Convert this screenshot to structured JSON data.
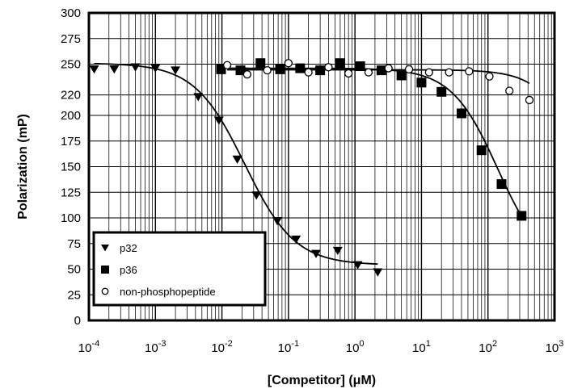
{
  "chart_data": {
    "type": "scatter",
    "xlabel": "[Competitor] (μM)",
    "ylabel": "Polarization (mP)",
    "xscale": "log",
    "xlim": [
      0.0001,
      1000
    ],
    "ylim": [
      0,
      300
    ],
    "x_ticks": [
      {
        "base": "10",
        "exp": "-4",
        "value": 0.0001
      },
      {
        "base": "10",
        "exp": "-3",
        "value": 0.001
      },
      {
        "base": "10",
        "exp": "-2",
        "value": 0.01
      },
      {
        "base": "10",
        "exp": "-1",
        "value": 0.1
      },
      {
        "base": "10",
        "exp": "0",
        "value": 1
      },
      {
        "base": "10",
        "exp": "1",
        "value": 10
      },
      {
        "base": "10",
        "exp": "2",
        "value": 100
      },
      {
        "base": "10",
        "exp": "3",
        "value": 1000
      }
    ],
    "y_ticks": [
      0,
      25,
      50,
      75,
      100,
      125,
      150,
      175,
      200,
      220,
      250,
      275,
      300
    ],
    "y_tick_labels": [
      "0",
      "25",
      "50",
      "75",
      "100",
      "125",
      "150",
      "175",
      "200",
      "220",
      "250",
      "275",
      "300"
    ],
    "grid": true,
    "legend_position": "bottom-left",
    "series": [
      {
        "name": "p32",
        "marker": "triangle-down",
        "x": [
          0.00012,
          0.00024,
          0.0005,
          0.001,
          0.002,
          0.0044,
          0.009,
          0.017,
          0.033,
          0.068,
          0.13,
          0.26,
          0.55,
          1.1,
          2.2
        ],
        "y": [
          245,
          245,
          247,
          246,
          244,
          218,
          195,
          157,
          122,
          97,
          79,
          65,
          68,
          54,
          47
        ],
        "fit": {
          "top": 251,
          "bottom": 54,
          "ec50": 0.022,
          "hill": 1.15
        }
      },
      {
        "name": "p36",
        "marker": "square",
        "x": [
          0.0097,
          0.019,
          0.038,
          0.075,
          0.15,
          0.3,
          0.6,
          1.2,
          2.5,
          5,
          10,
          20,
          40,
          80,
          160,
          320
        ],
        "y": [
          245,
          244,
          251,
          245,
          246,
          244,
          251,
          248,
          244,
          239,
          232,
          223,
          202,
          166,
          133,
          102
        ],
        "fit": {
          "top": 246,
          "bottom": 50,
          "ec50": 140,
          "hill": 1.25
        }
      },
      {
        "name": "non-phosphopeptide",
        "marker": "circle-open",
        "x": [
          0.012,
          0.024,
          0.048,
          0.1,
          0.2,
          0.4,
          0.8,
          1.6,
          3.2,
          6.5,
          13,
          26,
          52,
          105,
          210,
          420
        ],
        "y": [
          249,
          240,
          244,
          251,
          242,
          247,
          241,
          242,
          246,
          245,
          242,
          242,
          243,
          238,
          224,
          215
        ],
        "fit": {
          "top": 244.5,
          "bottom": 0,
          "ec50": 3500,
          "hill": 1.35
        }
      }
    ]
  }
}
